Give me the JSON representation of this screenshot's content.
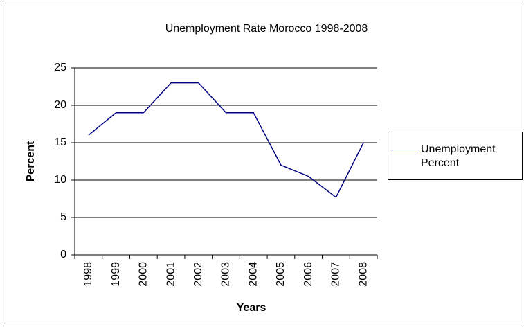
{
  "chart_data": {
    "type": "line",
    "title": "Unemployment Rate Morocco 1998-2008",
    "x_label": "Years",
    "y_label": "Percent",
    "categories": [
      "1998",
      "1999",
      "2000",
      "2001",
      "2002",
      "2003",
      "2004",
      "2005",
      "2006",
      "2007",
      "2008"
    ],
    "series": [
      {
        "name": "Unemployment Percent",
        "color": "#000080",
        "values": [
          16,
          19,
          19,
          23,
          23,
          19,
          19,
          12,
          10.5,
          7.7,
          15
        ]
      }
    ],
    "ylim": [
      0,
      25
    ],
    "yticks": [
      0,
      5,
      10,
      15,
      20,
      25
    ],
    "grid": true,
    "legend": "right"
  }
}
